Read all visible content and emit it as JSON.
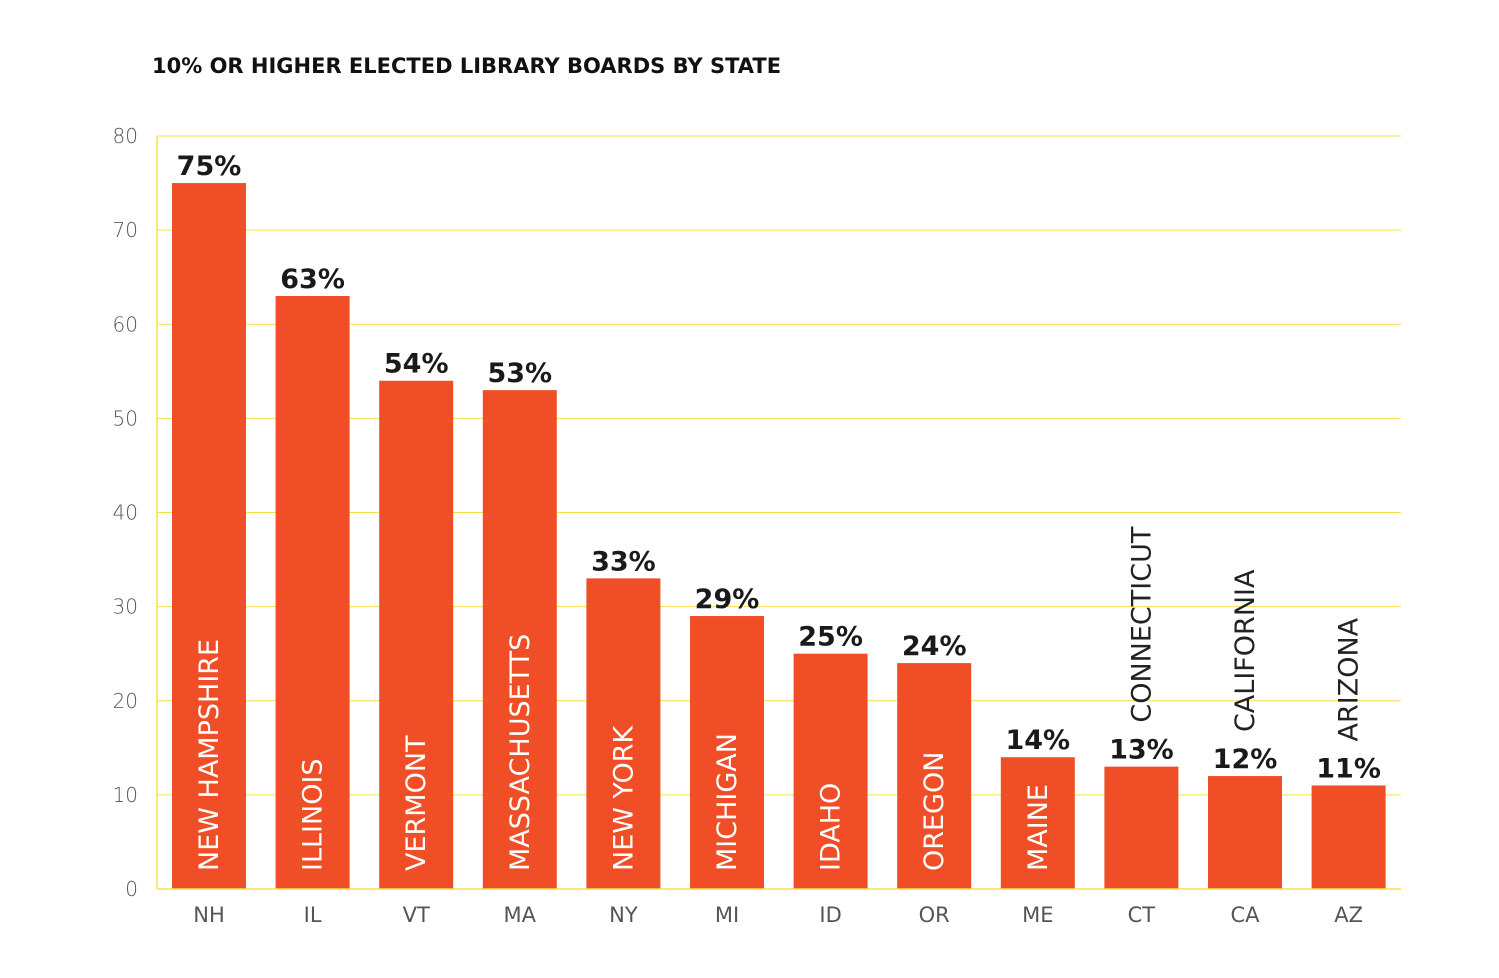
{
  "chart_data": {
    "type": "bar",
    "title": "10% OR HIGHER ELECTED LIBRARY BOARDS BY STATE",
    "categories": [
      "NH",
      "IL",
      "VT",
      "MA",
      "NY",
      "MI",
      "ID",
      "OR",
      "ME",
      "CT",
      "CA",
      "AZ"
    ],
    "state_names": [
      "NEW HAMPSHIRE",
      "ILLINOIS",
      "VERMONT",
      "MASSACHUSETTS",
      "NEW YORK",
      "MICHIGAN",
      "IDAHO",
      "OREGON",
      "MAINE",
      "CONNECTICUT",
      "CALIFORNIA",
      "ARIZONA"
    ],
    "values": [
      75,
      63,
      54,
      53,
      33,
      29,
      25,
      24,
      14,
      13,
      12,
      11
    ],
    "value_labels": [
      "75%",
      "63%",
      "54%",
      "53%",
      "33%",
      "29%",
      "25%",
      "24%",
      "14%",
      "13%",
      "12%",
      "11%"
    ],
    "ylim": [
      0,
      80
    ],
    "yticks": [
      0,
      10,
      20,
      30,
      40,
      50,
      60,
      70,
      80
    ],
    "grid": true,
    "colors": {
      "bar": "#ef4e26",
      "grid": "#f2e24a",
      "axis": "#f2e24a"
    }
  }
}
